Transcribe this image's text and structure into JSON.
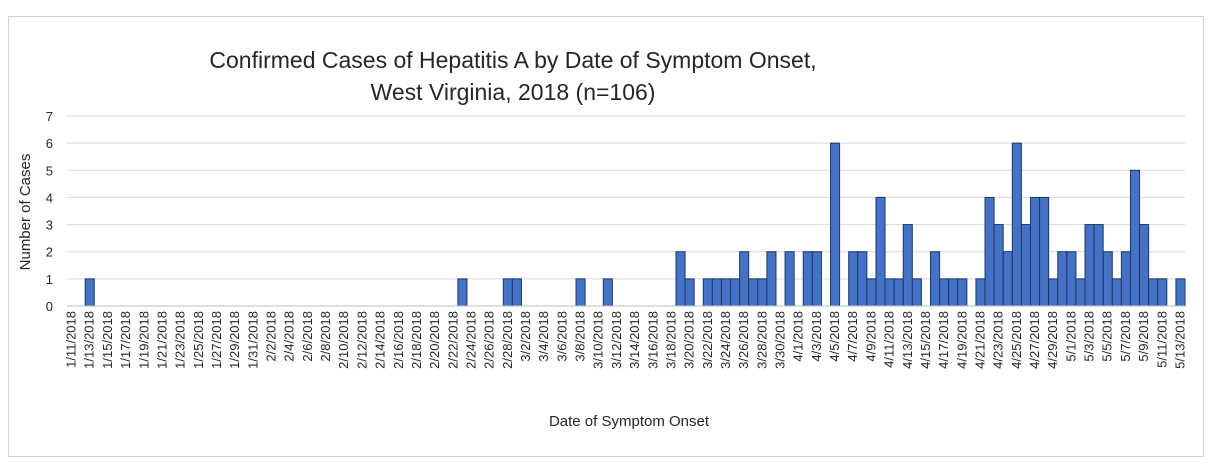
{
  "chart_data": {
    "type": "bar",
    "title": [
      "Confirmed Cases of Hepatitis A by Date of Symptom Onset,",
      "West Virginia, 2018 (n=106)"
    ],
    "xlabel": "Date of Symptom Onset",
    "ylabel": "Number of Cases",
    "ylim": [
      0,
      7
    ],
    "yticks": [
      0,
      1,
      2,
      3,
      4,
      5,
      6,
      7
    ],
    "grid": true,
    "bar_color": "#4472c4",
    "bar_edge_color": "#1f3864",
    "categories": [
      "1/11/2018",
      "1/12/2018",
      "1/13/2018",
      "1/14/2018",
      "1/15/2018",
      "1/16/2018",
      "1/17/2018",
      "1/18/2018",
      "1/19/2018",
      "1/20/2018",
      "1/21/2018",
      "1/22/2018",
      "1/23/2018",
      "1/24/2018",
      "1/25/2018",
      "1/26/2018",
      "1/27/2018",
      "1/28/2018",
      "1/29/2018",
      "1/30/2018",
      "1/31/2018",
      "2/1/2018",
      "2/2/2018",
      "2/3/2018",
      "2/4/2018",
      "2/5/2018",
      "2/6/2018",
      "2/7/2018",
      "2/8/2018",
      "2/9/2018",
      "2/10/2018",
      "2/11/2018",
      "2/12/2018",
      "2/13/2018",
      "2/14/2018",
      "2/15/2018",
      "2/16/2018",
      "2/17/2018",
      "2/18/2018",
      "2/19/2018",
      "2/20/2018",
      "2/21/2018",
      "2/22/2018",
      "2/23/2018",
      "2/24/2018",
      "2/25/2018",
      "2/26/2018",
      "2/27/2018",
      "2/28/2018",
      "3/1/2018",
      "3/2/2018",
      "3/3/2018",
      "3/4/2018",
      "3/5/2018",
      "3/6/2018",
      "3/7/2018",
      "3/8/2018",
      "3/9/2018",
      "3/10/2018",
      "3/11/2018",
      "3/12/2018",
      "3/13/2018",
      "3/14/2018",
      "3/15/2018",
      "3/16/2018",
      "3/17/2018",
      "3/18/2018",
      "3/19/2018",
      "3/20/2018",
      "3/21/2018",
      "3/22/2018",
      "3/23/2018",
      "3/24/2018",
      "3/25/2018",
      "3/26/2018",
      "3/27/2018",
      "3/28/2018",
      "3/29/2018",
      "3/30/2018",
      "3/31/2018",
      "4/1/2018",
      "4/2/2018",
      "4/3/2018",
      "4/4/2018",
      "4/5/2018",
      "4/6/2018",
      "4/7/2018",
      "4/8/2018",
      "4/9/2018",
      "4/10/2018",
      "4/11/2018",
      "4/12/2018",
      "4/13/2018",
      "4/14/2018",
      "4/15/2018",
      "4/16/2018",
      "4/17/2018",
      "4/18/2018",
      "4/19/2018",
      "4/20/2018",
      "4/21/2018",
      "4/22/2018",
      "4/23/2018",
      "4/24/2018",
      "4/25/2018",
      "4/26/2018",
      "4/27/2018",
      "4/28/2018",
      "4/29/2018",
      "4/30/2018",
      "5/1/2018",
      "5/2/2018",
      "5/3/2018",
      "5/4/2018",
      "5/5/2018",
      "5/6/2018",
      "5/7/2018",
      "5/8/2018",
      "5/9/2018",
      "5/10/2018",
      "5/11/2018",
      "5/12/2018",
      "5/13/2018"
    ],
    "tick_labels": [
      "1/11/2018",
      "1/13/2018",
      "1/15/2018",
      "1/17/2018",
      "1/19/2018",
      "1/21/2018",
      "1/23/2018",
      "1/25/2018",
      "1/27/2018",
      "1/29/2018",
      "1/31/2018",
      "2/2/2018",
      "2/4/2018",
      "2/6/2018",
      "2/8/2018",
      "2/10/2018",
      "2/12/2018",
      "2/14/2018",
      "2/16/2018",
      "2/18/2018",
      "2/20/2018",
      "2/22/2018",
      "2/24/2018",
      "2/26/2018",
      "2/28/2018",
      "3/2/2018",
      "3/4/2018",
      "3/6/2018",
      "3/8/2018",
      "3/10/2018",
      "3/12/2018",
      "3/14/2018",
      "3/16/2018",
      "3/18/2018",
      "3/20/2018",
      "3/22/2018",
      "3/24/2018",
      "3/26/2018",
      "3/28/2018",
      "3/30/2018",
      "4/1/2018",
      "4/3/2018",
      "4/5/2018",
      "4/7/2018",
      "4/9/2018",
      "4/11/2018",
      "4/13/2018",
      "4/15/2018",
      "4/17/2018",
      "4/19/2018",
      "4/21/2018",
      "4/23/2018",
      "4/25/2018",
      "4/27/2018",
      "4/29/2018",
      "5/1/2018",
      "5/3/2018",
      "5/5/2018",
      "5/7/2018",
      "5/9/2018",
      "5/11/2018",
      "5/13/2018"
    ],
    "values": [
      0,
      0,
      1,
      0,
      0,
      0,
      0,
      0,
      0,
      0,
      0,
      0,
      0,
      0,
      0,
      0,
      0,
      0,
      0,
      0,
      0,
      0,
      0,
      0,
      0,
      0,
      0,
      0,
      0,
      0,
      0,
      0,
      0,
      0,
      0,
      0,
      0,
      0,
      0,
      0,
      0,
      0,
      0,
      1,
      0,
      0,
      0,
      0,
      1,
      1,
      0,
      0,
      0,
      0,
      0,
      0,
      1,
      0,
      0,
      1,
      0,
      0,
      0,
      0,
      0,
      0,
      0,
      2,
      1,
      0,
      1,
      1,
      1,
      1,
      2,
      1,
      1,
      2,
      0,
      2,
      0,
      2,
      2,
      0,
      6,
      0,
      2,
      2,
      1,
      4,
      1,
      1,
      3,
      1,
      0,
      2,
      1,
      1,
      1,
      0,
      1,
      4,
      3,
      2,
      6,
      3,
      4,
      4,
      1,
      2,
      2,
      1,
      3,
      3,
      2,
      1,
      2,
      5,
      3,
      1,
      1,
      0,
      1
    ]
  }
}
